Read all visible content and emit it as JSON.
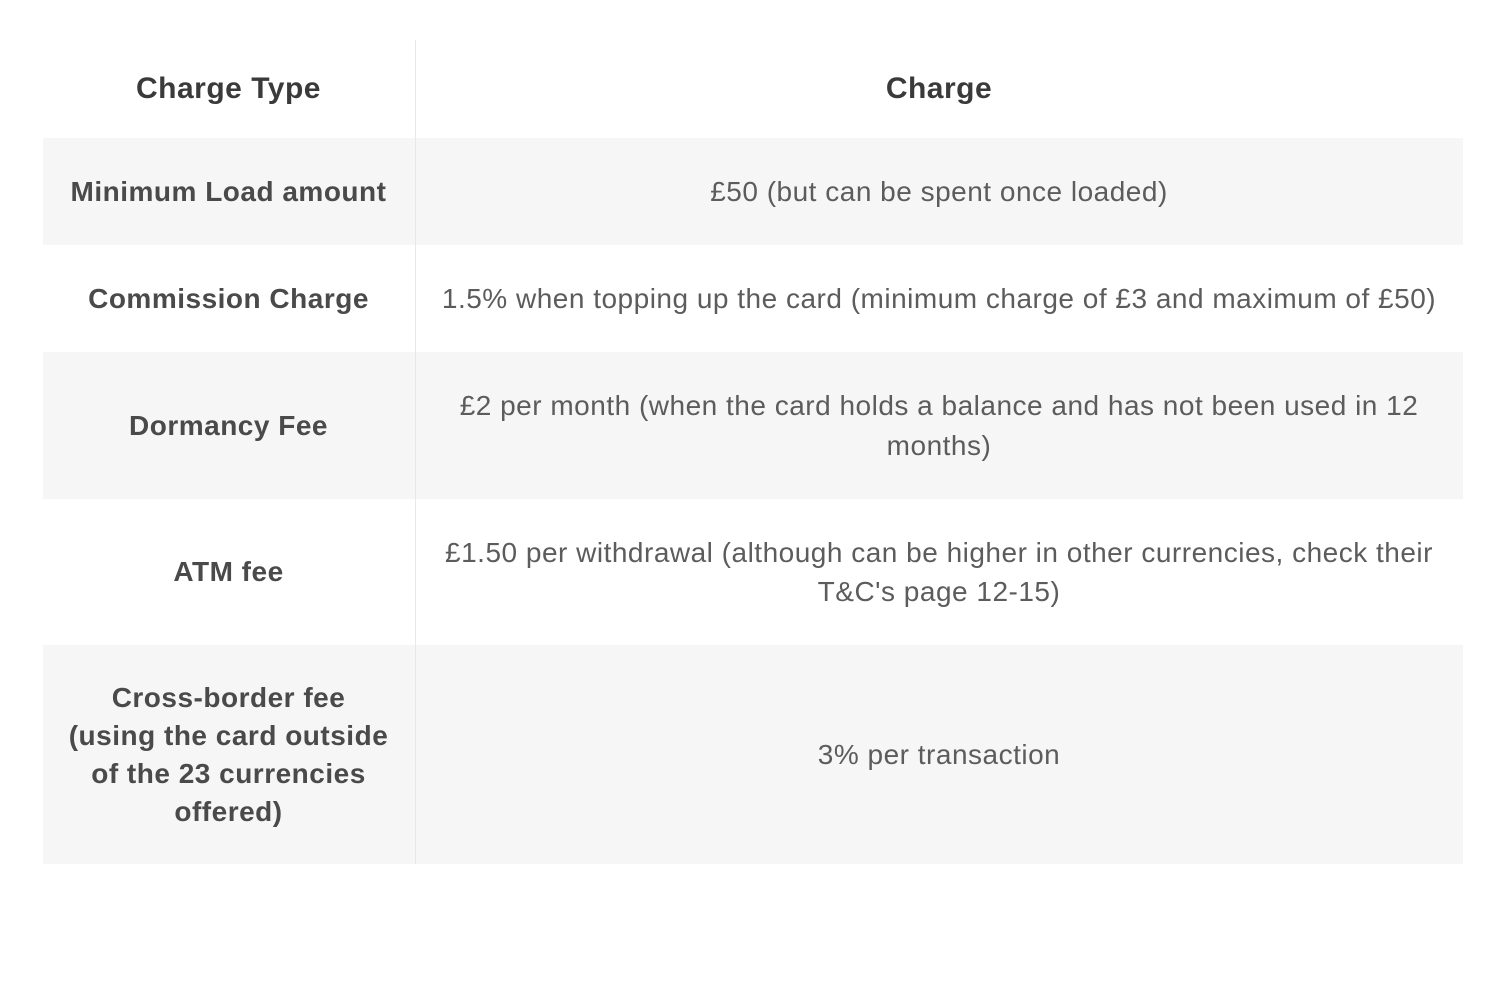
{
  "table": {
    "type": "table",
    "background_color": "#ffffff",
    "row_alt_color": "#f6f6f6",
    "border_color": "#e8e8e8",
    "text_color": "#5c5c5c",
    "header_text_color": "#3a3a3a",
    "label_text_color": "#4a4a4a",
    "header_fontsize": 30,
    "body_fontsize": 28,
    "left_col_width": 373,
    "columns": [
      {
        "label": "Charge Type",
        "align": "center",
        "weight": "bold"
      },
      {
        "label": "Charge",
        "align": "center",
        "weight": "bold"
      }
    ],
    "rows": [
      {
        "type": "Minimum Load amount",
        "charge": "£50 (but can be spent once loaded)"
      },
      {
        "type": "Commission Charge",
        "charge": "1.5% when topping up the card (minimum charge of £3 and maximum of £50)"
      },
      {
        "type": "Dormancy Fee",
        "charge": "£2 per month (when the card holds a balance and has not been used in 12 months)"
      },
      {
        "type": "ATM fee",
        "charge": "£1.50 per withdrawal (although can be higher in other currencies, check their T&C's page 12-15)"
      },
      {
        "type": "Cross-border fee (using the card outside of the 23 currencies offered)",
        "charge": "3% per transaction"
      }
    ]
  }
}
